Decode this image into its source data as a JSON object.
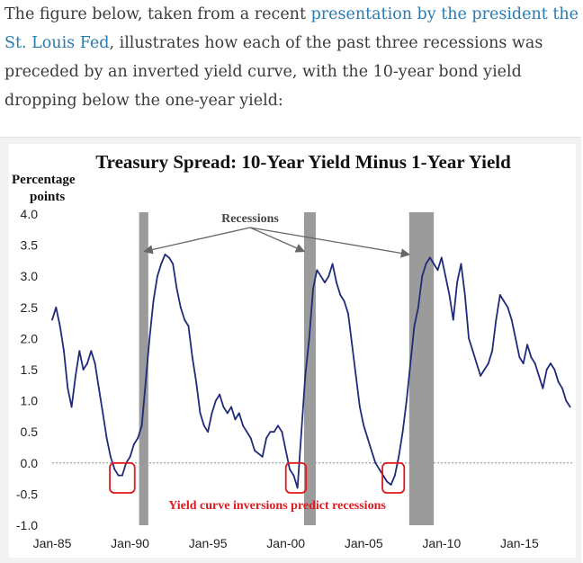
{
  "article": {
    "text_before_link": "The figure below, taken from a recent ",
    "link_text": "presentation by the president the St. Louis Fed",
    "text_after_link": ", illustrates how each of the past three recessions was preceded by an inverted yield curve, with the 10-year bond yield dropping below the one-year yield:"
  },
  "colors": {
    "line": "#1f2a7a",
    "recession": "#9b9b9b",
    "highlight": "#e0191f",
    "zero_line": "#888888"
  },
  "chart_data": {
    "type": "line",
    "title": "Treasury Spread: 10-Year Yield Minus 1-Year Yield",
    "ylabel": "Percentage points",
    "ylim": [
      -1.0,
      4.0
    ],
    "yticks": [
      {
        "value": 4.0,
        "label": "4.0"
      },
      {
        "value": 3.5,
        "label": "3.5"
      },
      {
        "value": 3.0,
        "label": "3.0"
      },
      {
        "value": 2.5,
        "label": "2.5"
      },
      {
        "value": 2.0,
        "label": "2.0"
      },
      {
        "value": 1.5,
        "label": "1.5"
      },
      {
        "value": 1.0,
        "label": "1.0"
      },
      {
        "value": 0.5,
        "label": "0.5"
      },
      {
        "value": 0.0,
        "label": "0.0"
      },
      {
        "value": -0.5,
        "label": "-0.5"
      },
      {
        "value": -1.0,
        "label": "-1.0"
      }
    ],
    "xlim": [
      1985.0,
      2018.5
    ],
    "xticks": [
      {
        "value": 1985,
        "label": "Jan-85"
      },
      {
        "value": 1990,
        "label": "Jan-90"
      },
      {
        "value": 1995,
        "label": "Jan-95"
      },
      {
        "value": 2000,
        "label": "Jan-00"
      },
      {
        "value": 2005,
        "label": "Jan-05"
      },
      {
        "value": 2010,
        "label": "Jan-10"
      },
      {
        "value": 2015,
        "label": "Jan-15"
      }
    ],
    "recessions": [
      {
        "start": 1990.58,
        "end": 1991.17
      },
      {
        "start": 2001.17,
        "end": 2001.92
      },
      {
        "start": 2007.92,
        "end": 2009.5
      }
    ],
    "inversion_boxes": [
      {
        "start": 1988.7,
        "end": 1990.3,
        "low": -0.48,
        "high": 0.0
      },
      {
        "start": 2000.0,
        "end": 2001.3,
        "low": -0.48,
        "high": 0.0
      },
      {
        "start": 2006.2,
        "end": 2007.6,
        "low": -0.48,
        "high": 0.0
      }
    ],
    "annotations": {
      "recessions_label": "Recessions",
      "inversions_label": "Yield curve inversions predict recessions"
    },
    "series": [
      {
        "name": "10-Year Yield Minus 1-Year Yield",
        "x": [
          1985.0,
          1985.25,
          1985.5,
          1985.75,
          1986.0,
          1986.25,
          1986.5,
          1986.75,
          1987.0,
          1987.25,
          1987.5,
          1987.75,
          1988.0,
          1988.25,
          1988.5,
          1988.75,
          1989.0,
          1989.25,
          1989.5,
          1989.75,
          1990.0,
          1990.25,
          1990.5,
          1990.75,
          1991.0,
          1991.25,
          1991.5,
          1991.75,
          1992.0,
          1992.25,
          1992.5,
          1992.75,
          1993.0,
          1993.25,
          1993.5,
          1993.75,
          1994.0,
          1994.25,
          1994.5,
          1994.75,
          1995.0,
          1995.25,
          1995.5,
          1995.75,
          1996.0,
          1996.25,
          1996.5,
          1996.75,
          1997.0,
          1997.25,
          1997.5,
          1997.75,
          1998.0,
          1998.25,
          1998.5,
          1998.75,
          1999.0,
          1999.25,
          1999.5,
          1999.75,
          2000.0,
          2000.25,
          2000.5,
          2000.75,
          2001.0,
          2001.25,
          2001.5,
          2001.75,
          2002.0,
          2002.25,
          2002.5,
          2002.75,
          2003.0,
          2003.25,
          2003.5,
          2003.75,
          2004.0,
          2004.25,
          2004.5,
          2004.75,
          2005.0,
          2005.25,
          2005.5,
          2005.75,
          2006.0,
          2006.25,
          2006.5,
          2006.75,
          2007.0,
          2007.25,
          2007.5,
          2007.75,
          2008.0,
          2008.25,
          2008.5,
          2008.75,
          2009.0,
          2009.25,
          2009.5,
          2009.75,
          2010.0,
          2010.25,
          2010.5,
          2010.75,
          2011.0,
          2011.25,
          2011.5,
          2011.75,
          2012.0,
          2012.25,
          2012.5,
          2012.75,
          2013.0,
          2013.25,
          2013.5,
          2013.75,
          2014.0,
          2014.25,
          2014.5,
          2014.75,
          2015.0,
          2015.25,
          2015.5,
          2015.75,
          2016.0,
          2016.25,
          2016.5,
          2016.75,
          2017.0,
          2017.25,
          2017.5,
          2017.75,
          2018.0,
          2018.25
        ],
        "values": [
          2.3,
          2.5,
          2.2,
          1.8,
          1.2,
          0.9,
          1.4,
          1.8,
          1.5,
          1.6,
          1.8,
          1.6,
          1.2,
          0.8,
          0.4,
          0.1,
          -0.1,
          -0.2,
          -0.2,
          0.0,
          0.1,
          0.3,
          0.4,
          0.6,
          1.3,
          2.0,
          2.6,
          3.0,
          3.2,
          3.35,
          3.3,
          3.2,
          2.8,
          2.5,
          2.3,
          2.2,
          1.7,
          1.3,
          0.8,
          0.6,
          0.5,
          0.8,
          1.0,
          1.1,
          0.9,
          0.8,
          0.9,
          0.7,
          0.8,
          0.6,
          0.5,
          0.4,
          0.2,
          0.15,
          0.1,
          0.4,
          0.5,
          0.5,
          0.6,
          0.5,
          0.2,
          -0.1,
          -0.2,
          -0.4,
          0.5,
          1.4,
          2.0,
          2.8,
          3.1,
          3.0,
          2.9,
          3.0,
          3.2,
          2.9,
          2.7,
          2.6,
          2.4,
          1.9,
          1.4,
          0.9,
          0.6,
          0.4,
          0.2,
          0.0,
          -0.1,
          -0.2,
          -0.3,
          -0.35,
          -0.2,
          0.1,
          0.5,
          1.0,
          1.6,
          2.2,
          2.5,
          3.0,
          3.2,
          3.3,
          3.2,
          3.1,
          3.3,
          3.0,
          2.7,
          2.3,
          2.9,
          3.2,
          2.7,
          2.0,
          1.8,
          1.6,
          1.4,
          1.5,
          1.6,
          1.8,
          2.3,
          2.7,
          2.6,
          2.5,
          2.3,
          2.0,
          1.7,
          1.6,
          1.9,
          1.7,
          1.6,
          1.4,
          1.2,
          1.5,
          1.6,
          1.5,
          1.3,
          1.2,
          1.0,
          0.9
        ]
      }
    ]
  }
}
